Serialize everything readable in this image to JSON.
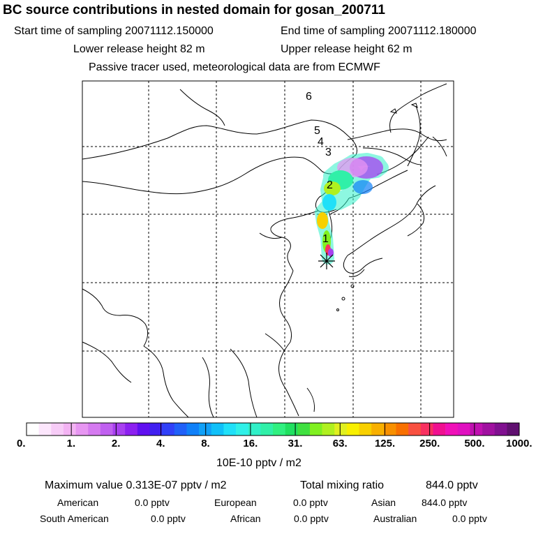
{
  "header": {
    "title": "BC  source contributions in nested domain for gosan_200711",
    "start_label": "Start time of sampling 20071112.150000",
    "end_label": "End time of sampling 20071112.180000",
    "lower_label": "Lower release height   82 m",
    "upper_label": "Upper release height   62 m",
    "passive_label": "Passive tracer used, meteorological data are from ECMWF"
  },
  "map": {
    "trajectory_labels": [
      "6",
      "5",
      "4",
      "3",
      "2",
      "1"
    ],
    "receptor_marker": "star"
  },
  "colorbar": {
    "tick_labels": [
      "0.",
      "1.",
      "2.",
      "4.",
      "8.",
      "16.",
      "31.",
      "63.",
      "125.",
      "250.",
      "500.",
      "1000."
    ],
    "units": "10E-10 pptv / m2",
    "colors": [
      "#ffffff",
      "#fce6fc",
      "#f7ccf7",
      "#f3b3f3",
      "#e796f2",
      "#d57af0",
      "#c060f0",
      "#a840f0",
      "#8c20f0",
      "#6010f0",
      "#4020f0",
      "#3040f8",
      "#2060f8",
      "#1080f8",
      "#10a0f8",
      "#10c0f8",
      "#20e0f8",
      "#30f0e8",
      "#30f0c8",
      "#30f0a8",
      "#30f080",
      "#20e060",
      "#40e040",
      "#80f020",
      "#b0f020",
      "#e0f020",
      "#f8f000",
      "#f8d000",
      "#f8b000",
      "#f89000",
      "#f87000",
      "#f85040",
      "#f83060",
      "#f01090",
      "#f010b8",
      "#e010c0",
      "#c010b0",
      "#a010a0",
      "#801090",
      "#601070"
    ]
  },
  "stats": {
    "max_label": "Maximum value  0.313E-07 pptv / m2",
    "total_label": "Total mixing ratio",
    "total_value": "844.0 pptv",
    "american_label": "American",
    "american_value": "0.0 pptv",
    "european_label": "European",
    "european_value": "0.0 pptv",
    "asian_label": "Asian",
    "asian_value": "844.0 pptv",
    "south_american_label": "South American",
    "south_american_value": "0.0 pptv",
    "african_label": "African",
    "african_value": "0.0 pptv",
    "australian_label": "Australian",
    "australian_value": "0.0 pptv"
  }
}
